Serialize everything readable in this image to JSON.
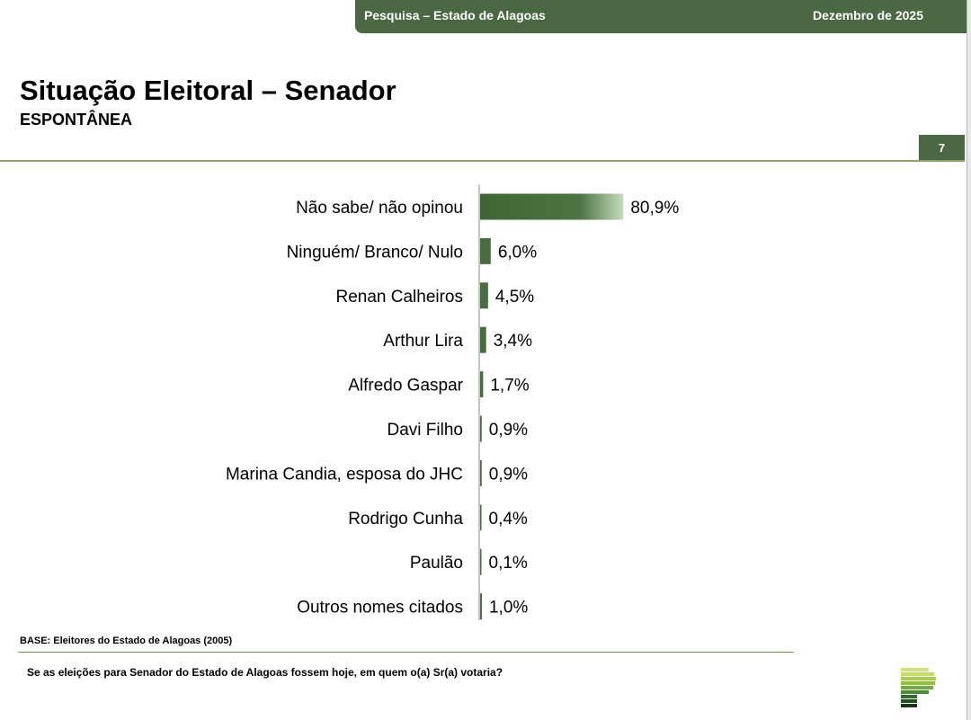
{
  "header": {
    "left": "Pesquisa – Estado de Alagoas",
    "right": "Dezembro de 2025"
  },
  "title": "Situação Eleitoral – Senador",
  "subtitle": "ESPONTÂNEA",
  "page_number": "7",
  "footer": {
    "base": "BASE: Eleitores do Estado de Alagoas (2005)",
    "question": "Se as eleições para Senador do Estado de Alagoas fossem hoje, em quem o(a) Sr(a) votaria?"
  },
  "colors": {
    "bar_dark": "#3f6535",
    "bar_light": "#c7dcc0",
    "header": "#4a6841"
  },
  "chart_data": {
    "type": "bar",
    "orientation": "horizontal",
    "categories": [
      "Não sabe/ não opinou",
      "Ninguém/ Branco/ Nulo",
      "Renan Calheiros",
      "Arthur Lira",
      "Alfredo Gaspar",
      "Davi Filho",
      "Marina Candia, esposa do JHC",
      "Rodrigo Cunha",
      "Paulão",
      "Outros nomes citados"
    ],
    "values": [
      80.9,
      6.0,
      4.5,
      3.4,
      1.7,
      0.9,
      0.9,
      0.4,
      0.1,
      1.0
    ],
    "labels": [
      "80,9%",
      "6,0%",
      "4,5%",
      "3,4%",
      "1,7%",
      "0,9%",
      "0,9%",
      "0,4%",
      "0,1%",
      "1,0%"
    ],
    "title": "",
    "xlabel": "",
    "ylabel": "",
    "xlim": [
      0,
      100
    ],
    "grid": false
  }
}
